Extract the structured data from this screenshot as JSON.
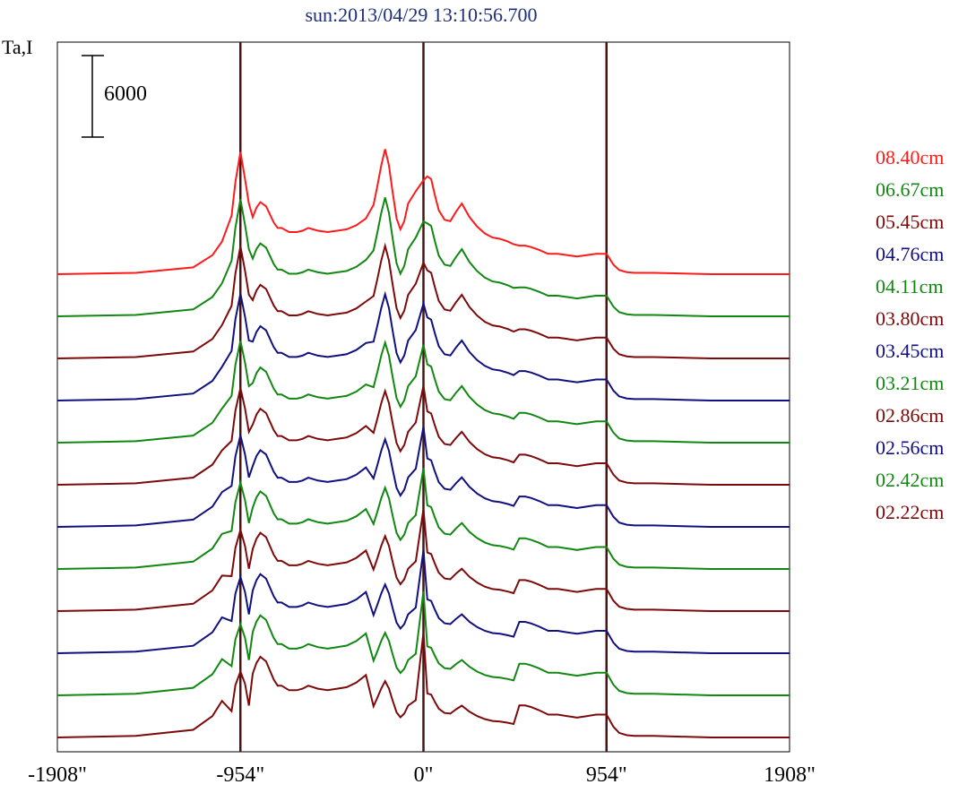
{
  "chart_data": {
    "type": "line",
    "title": "sun:2013/04/29 13:10:56.700",
    "ylabel": "Ta,I",
    "xlabel": "",
    "scale_bar": {
      "label": "6000",
      "value": 6000
    },
    "x_ticks": [
      "-1908\"",
      "-954\"",
      "0\"",
      "954\"",
      "1908\""
    ],
    "x_tick_values": [
      -1908,
      -954,
      0,
      954,
      1908
    ],
    "xlim": [
      -1908,
      1908
    ],
    "vertical_markers": [
      -954,
      0,
      954
    ],
    "grid": false,
    "legend_position": "right",
    "series": [
      {
        "name": "08.40cm",
        "color": "#ff1a1a"
      },
      {
        "name": "06.67cm",
        "color": "#118811"
      },
      {
        "name": "05.45cm",
        "color": "#7d0a0a"
      },
      {
        "name": "04.76cm",
        "color": "#101080"
      },
      {
        "name": "04.11cm",
        "color": "#118811"
      },
      {
        "name": "03.80cm",
        "color": "#7d0a0a"
      },
      {
        "name": "03.45cm",
        "color": "#101080"
      },
      {
        "name": "03.21cm",
        "color": "#118811"
      },
      {
        "name": "02.86cm",
        "color": "#7d0a0a"
      },
      {
        "name": "02.56cm",
        "color": "#101080"
      },
      {
        "name": "02.42cm",
        "color": "#118811"
      },
      {
        "name": "02.22cm",
        "color": "#7d0a0a"
      }
    ],
    "profile_points": {
      "x": [
        -1908,
        -1500,
        -1200,
        -1100,
        -1050,
        -1000,
        -980,
        -954,
        -930,
        -910,
        -890,
        -870,
        -850,
        -820,
        -780,
        -760,
        -740,
        -700,
        -660,
        -630,
        -600,
        -550,
        -500,
        -450,
        -400,
        -350,
        -300,
        -260,
        -240,
        -220,
        -200,
        -180,
        -160,
        -140,
        -120,
        -100,
        -80,
        -40,
        0,
        20,
        40,
        60,
        80,
        110,
        140,
        170,
        200,
        240,
        280,
        320,
        360,
        400,
        440,
        470,
        500,
        530,
        560,
        600,
        650,
        700,
        750,
        800,
        850,
        900,
        954,
        990,
        1020,
        1060,
        1100,
        1200,
        1500,
        1908
      ],
      "y_8.40cm": [
        0,
        100,
        500,
        1400,
        2400,
        4300,
        6800,
        9000,
        7000,
        5200,
        4200,
        4900,
        5300,
        5000,
        3800,
        3400,
        3400,
        3100,
        3100,
        3200,
        3400,
        3200,
        3100,
        3200,
        3300,
        3600,
        4100,
        5100,
        6500,
        8000,
        9200,
        8000,
        6000,
        4100,
        3300,
        3900,
        5200,
        6100,
        6900,
        7200,
        7000,
        5800,
        4700,
        4000,
        3900,
        4600,
        5200,
        4200,
        3500,
        3000,
        2700,
        2600,
        2400,
        2200,
        2100,
        2100,
        2000,
        1800,
        1500,
        1500,
        1400,
        1300,
        1400,
        1500,
        1500,
        700,
        300,
        150,
        100,
        100,
        0,
        0
      ]
    }
  }
}
